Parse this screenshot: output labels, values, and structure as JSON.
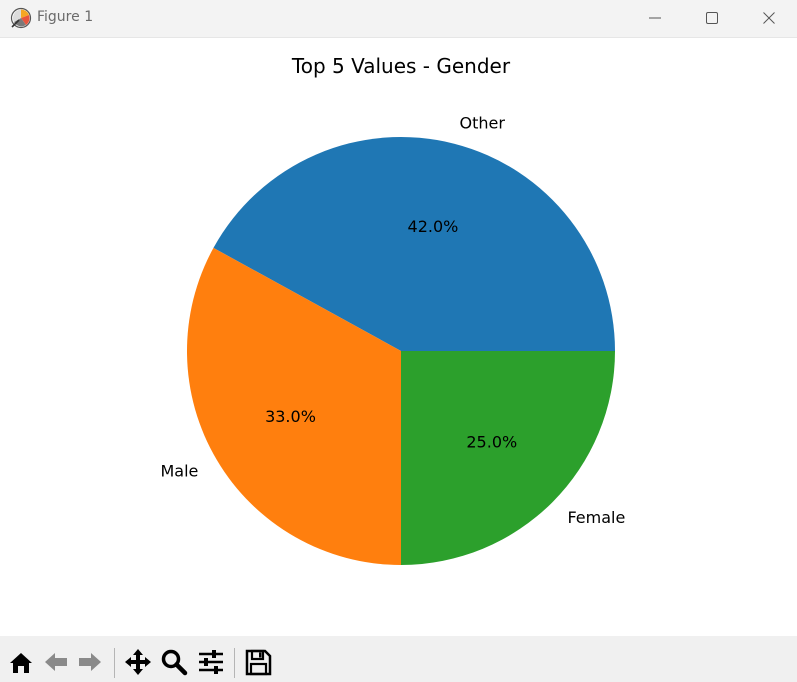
{
  "window": {
    "title": "Figure 1",
    "icons": {
      "app": "matplotlib-figure-icon",
      "minimize": "minimize-icon",
      "maximize": "maximize-icon",
      "close": "close-icon"
    }
  },
  "toolbar": {
    "tools": [
      "home-icon",
      "back-arrow-icon",
      "forward-arrow-icon",
      "pan-icon",
      "zoom-icon",
      "configure-subplots-icon",
      "save-icon"
    ]
  },
  "chart_data": {
    "type": "pie",
    "title": "Top 5 Values - Gender",
    "labels": [
      "Other",
      "Male",
      "Female"
    ],
    "values": [
      42.0,
      33.0,
      25.0
    ],
    "percent_labels": [
      "42.0%",
      "33.0%",
      "25.0%"
    ],
    "colors": [
      "#1f77b4",
      "#ff7f0e",
      "#2ca02c"
    ],
    "start_angle": 0,
    "counterclockwise": true
  }
}
